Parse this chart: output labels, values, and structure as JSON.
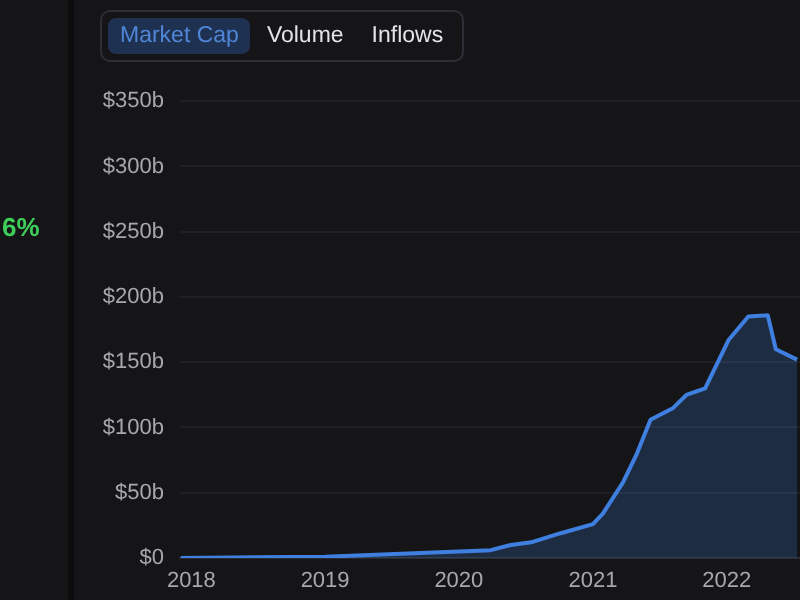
{
  "chart_data": {
    "type": "area",
    "annotations": [
      "6%",
      "Market Cap",
      "Volume",
      "Inflows"
    ],
    "x": [
      "2017-12-03",
      "2019-01-01",
      "2020-01-01",
      "2020-03-28",
      "2020-05-22",
      "2020-07-16",
      "2020-10-05",
      "2021-01-01",
      "2021-01-28",
      "2021-03-24",
      "2021-05-01",
      "2021-06-07",
      "2021-08-08",
      "2021-09-13",
      "2021-11-03",
      "2022-01-06",
      "2022-03-01",
      "2022-04-23",
      "2022-05-15",
      "2022-07-12"
    ],
    "series": [
      {
        "color": "#3f7fe0",
        "values": [
          0,
          1,
          5,
          6,
          10,
          12,
          19,
          26,
          34,
          58,
          80,
          106,
          115,
          125,
          130,
          167,
          185,
          186,
          160,
          152
        ]
      }
    ],
    "xlim": [
      "2017-12-01",
      "2022-07-20"
    ],
    "xticks": [
      {
        "value": "2018-01-01",
        "label": "2018"
      },
      {
        "value": "2019-01-01",
        "label": "2019"
      },
      {
        "value": "2020-01-01",
        "label": "2020"
      },
      {
        "value": "2021-01-01",
        "label": "2021"
      },
      {
        "value": "2022-01-01",
        "label": "2022"
      }
    ],
    "ylim": [
      0,
      350
    ],
    "yticks": [
      {
        "value": 0,
        "label": "$0"
      },
      {
        "value": 50,
        "label": "$50b"
      },
      {
        "value": 100,
        "label": "$100b"
      },
      {
        "value": 150,
        "label": "$150b"
      },
      {
        "value": 200,
        "label": "$200b"
      },
      {
        "value": 250,
        "label": "$250b"
      },
      {
        "value": 300,
        "label": "$300b"
      },
      {
        "value": 350,
        "label": "$350b"
      }
    ],
    "grid": "y",
    "legend": false,
    "marker": "none",
    "line_style": "solid"
  }
}
